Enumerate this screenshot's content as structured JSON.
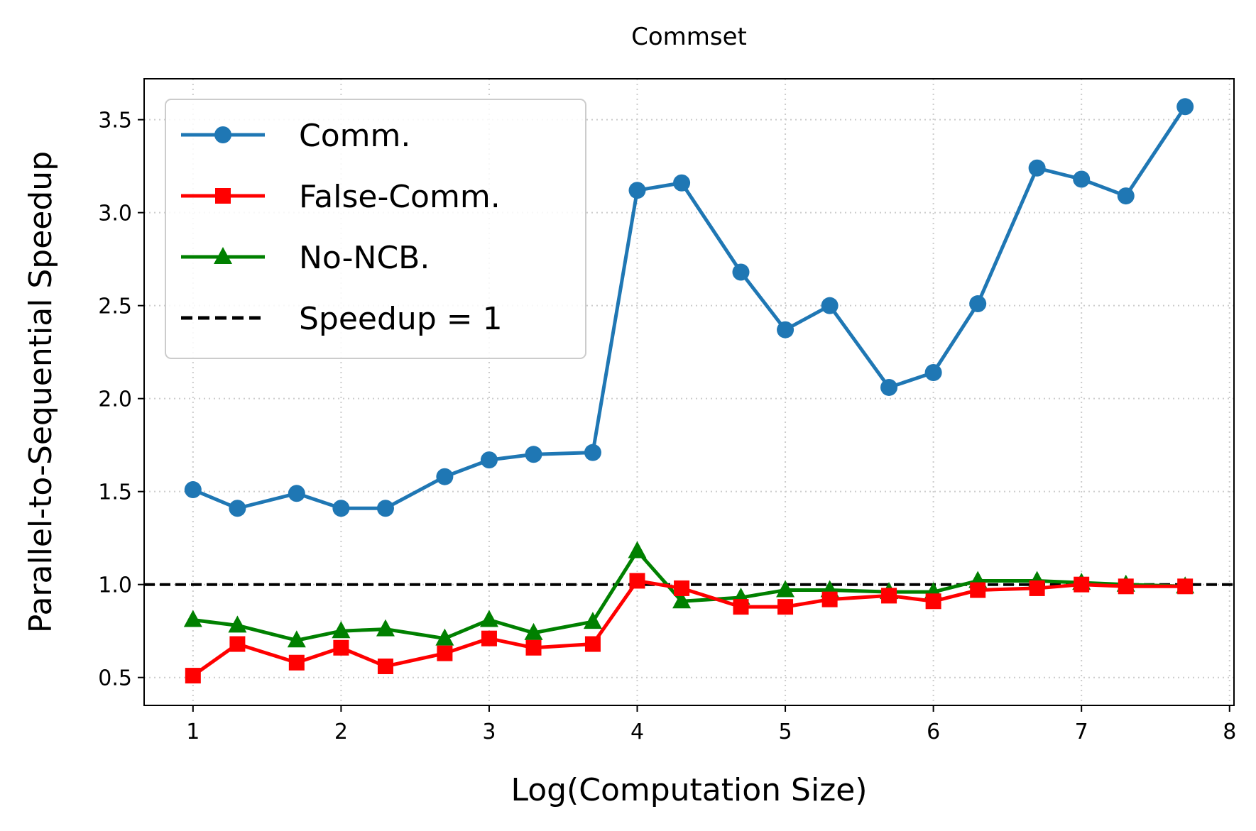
{
  "chart_data": {
    "type": "line",
    "title": "Commset",
    "xlabel": "Log(Computation Size)",
    "ylabel": "Parallel-to-Sequential Speedup",
    "xlim": [
      0.67,
      8.03
    ],
    "ylim": [
      0.35,
      3.72
    ],
    "xticks": [
      1,
      2,
      3,
      4,
      5,
      6,
      7,
      8
    ],
    "yticks": [
      0.5,
      1.0,
      1.5,
      2.0,
      2.5,
      3.0,
      3.5
    ],
    "xtick_labels": [
      "1",
      "2",
      "3",
      "4",
      "5",
      "6",
      "7",
      "8"
    ],
    "ytick_labels": [
      "0.5",
      "1.0",
      "1.5",
      "2.0",
      "2.5",
      "3.0",
      "3.5"
    ],
    "grid": true,
    "legend_position": "top-left",
    "x": [
      1.0,
      1.3,
      1.7,
      2.0,
      2.3,
      2.7,
      3.0,
      3.3,
      3.7,
      4.0,
      4.3,
      4.7,
      5.0,
      5.3,
      5.7,
      6.0,
      6.3,
      6.7,
      7.0,
      7.3,
      7.7
    ],
    "series": [
      {
        "name": "Comm.",
        "color": "#1f77b4",
        "marker": "circle",
        "values": [
          1.51,
          1.41,
          1.49,
          1.41,
          1.41,
          1.58,
          1.67,
          1.7,
          1.71,
          3.12,
          3.16,
          2.68,
          2.37,
          2.5,
          2.06,
          2.14,
          2.51,
          3.24,
          3.18,
          3.09,
          3.57
        ]
      },
      {
        "name": "False-Comm.",
        "color": "#ff0000",
        "marker": "square",
        "values": [
          0.51,
          0.68,
          0.58,
          0.66,
          0.56,
          0.63,
          0.71,
          0.66,
          0.68,
          1.02,
          0.98,
          0.88,
          0.88,
          0.92,
          0.94,
          0.91,
          0.97,
          0.98,
          1.0,
          0.99,
          0.99
        ]
      },
      {
        "name": "No-NCB.",
        "color": "#008000",
        "marker": "triangle",
        "values": [
          0.81,
          0.78,
          0.7,
          0.75,
          0.76,
          0.71,
          0.81,
          0.74,
          0.8,
          1.18,
          0.91,
          0.93,
          0.97,
          0.97,
          0.96,
          0.96,
          1.02,
          1.02,
          1.01,
          1.0,
          0.99
        ]
      }
    ],
    "reference_line": {
      "name": "Speedup = 1",
      "y": 1.0,
      "color": "#000000",
      "style": "dashed"
    }
  }
}
